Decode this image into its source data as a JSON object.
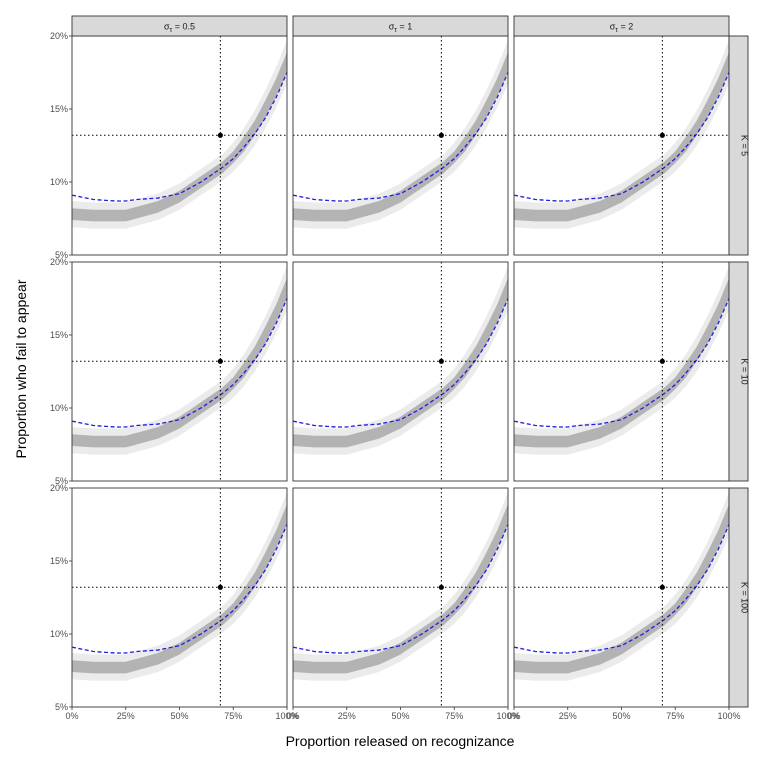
{
  "chart_data": {
    "type": "line",
    "layout": "facet-grid",
    "xlabel": "Proportion released on recognizance",
    "ylabel": "Proportion who fail to appear",
    "xlim": [
      0,
      1
    ],
    "ylim": [
      0.05,
      0.2
    ],
    "x_ticks": [
      0,
      0.25,
      0.5,
      0.75,
      1.0
    ],
    "x_tick_labels": [
      "0%",
      "25%",
      "50%",
      "75%",
      "100%"
    ],
    "y_ticks": [
      0.05,
      0.1,
      0.15,
      0.2
    ],
    "y_tick_labels": [
      "5%",
      "10%",
      "15%",
      "20%"
    ],
    "grid": false,
    "columns": [
      {
        "symbol": "σ",
        "subscript": "τ",
        "value": "= 0.5"
      },
      {
        "symbol": "σ",
        "subscript": "τ",
        "value": "= 1"
      },
      {
        "symbol": "σ",
        "subscript": "τ",
        "value": "= 2"
      }
    ],
    "rows": [
      {
        "label": "K = 5"
      },
      {
        "label": "K = 10"
      },
      {
        "label": "K = 100"
      }
    ],
    "reference": {
      "x": 0.69,
      "y": 0.132
    },
    "x": [
      0.0,
      0.1,
      0.2,
      0.25,
      0.3,
      0.4,
      0.5,
      0.55,
      0.6,
      0.65,
      0.7,
      0.75,
      0.8,
      0.85,
      0.9,
      0.95,
      1.0
    ],
    "series": [
      {
        "style": "grey-band",
        "colors": {
          "outer": "#ebebeb",
          "inner": "#b3b3b3"
        },
        "center": [
          0.078,
          0.077,
          0.077,
          0.077,
          0.079,
          0.083,
          0.09,
          0.095,
          0.1,
          0.105,
          0.11,
          0.117,
          0.126,
          0.137,
          0.15,
          0.165,
          0.182
        ],
        "inner_halfwidth": [
          0.004,
          0.004,
          0.004,
          0.004,
          0.004,
          0.004,
          0.004,
          0.004,
          0.004,
          0.004,
          0.004,
          0.004,
          0.005,
          0.005,
          0.006,
          0.006,
          0.007
        ],
        "outer_halfwidth": [
          0.009,
          0.009,
          0.009,
          0.009,
          0.009,
          0.009,
          0.009,
          0.009,
          0.009,
          0.009,
          0.009,
          0.01,
          0.011,
          0.012,
          0.013,
          0.014,
          0.015
        ]
      },
      {
        "style": "blue-dashed",
        "color": "#1f1fe0",
        "values": [
          0.091,
          0.088,
          0.087,
          0.087,
          0.088,
          0.089,
          0.092,
          0.096,
          0.1,
          0.105,
          0.11,
          0.116,
          0.124,
          0.133,
          0.144,
          0.158,
          0.175
        ]
      }
    ]
  }
}
